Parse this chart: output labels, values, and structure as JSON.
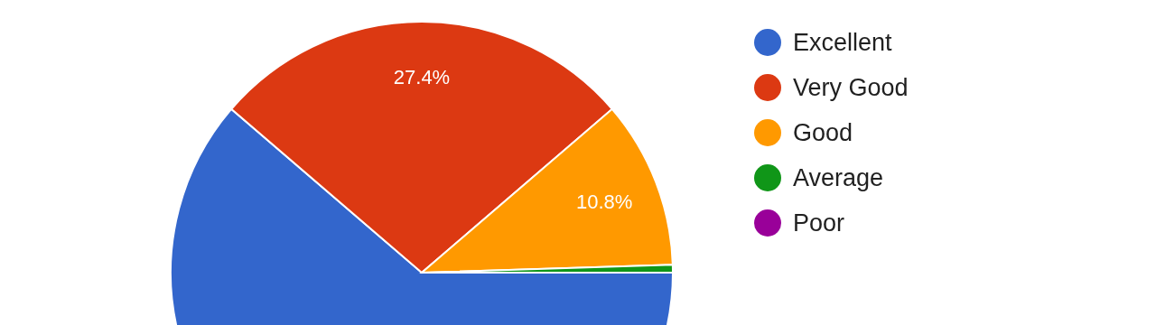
{
  "chart_data": {
    "type": "pie",
    "categories": [
      "Excellent",
      "Very Good",
      "Good",
      "Average",
      "Poor"
    ],
    "values": [
      61.3,
      27.4,
      10.8,
      0.5,
      0
    ],
    "colors": [
      "#3366cc",
      "#dc3912",
      "#ff9900",
      "#109618",
      "#990099"
    ],
    "value_labels": [
      null,
      "27.4%",
      "10.8%",
      null,
      null
    ],
    "legend": "right"
  }
}
